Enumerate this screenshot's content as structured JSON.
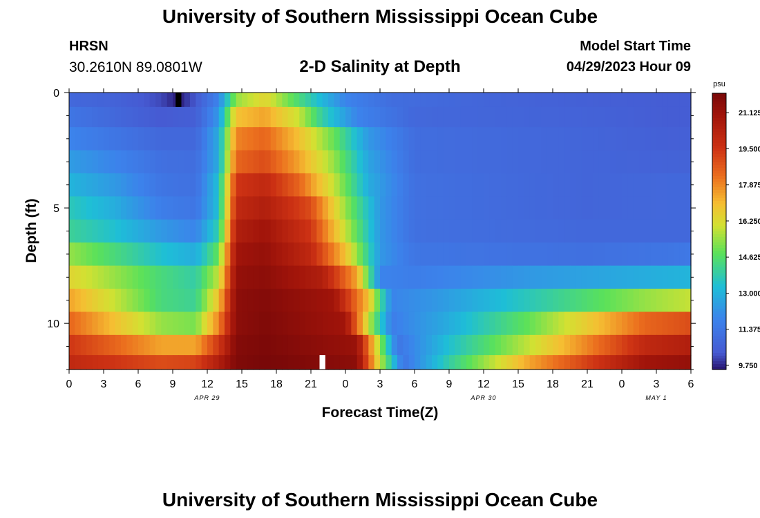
{
  "header": {
    "title": "University of Southern Mississippi Ocean Cube",
    "station": "HRSN",
    "coords": "30.2610N  89.0801W",
    "subtitle": "2-D Salinity at Depth",
    "model_label": "Model Start Time",
    "model_time": "04/29/2023 Hour 09"
  },
  "footer": {
    "title": "University of Southern Mississippi Ocean Cube"
  },
  "chart_data": {
    "type": "heatmap",
    "title": "2-D Salinity at Depth",
    "xlabel": "Forecast Time(Z)",
    "ylabel": "Depth (ft)",
    "x_hours_range": [
      0,
      54
    ],
    "x_tick_labels": [
      "0",
      "3",
      "6",
      "9",
      "12",
      "15",
      "18",
      "21",
      "0",
      "3",
      "6",
      "9",
      "12",
      "15",
      "18",
      "21",
      "0",
      "3",
      "6"
    ],
    "date_labels": [
      {
        "text": "APR 29",
        "hour": 12
      },
      {
        "text": "APR 30",
        "hour": 36
      },
      {
        "text": "MAY 1",
        "hour": 51
      }
    ],
    "y_range_ft": [
      0,
      12
    ],
    "y_ticks": [
      0,
      5,
      10
    ],
    "colorbar": {
      "unit": "psu",
      "min": 9.75,
      "max": 22.0,
      "tick_labels": [
        "21.125",
        "19.500",
        "17.875",
        "16.250",
        "14.625",
        "13.000",
        "11.375",
        "9.750"
      ],
      "tick_values": [
        21.125,
        19.5,
        17.875,
        16.25,
        14.625,
        13.0,
        11.375,
        9.75
      ]
    },
    "depth_layers_ft": [
      0.25,
      1.0,
      2.0,
      3.0,
      4.0,
      5.0,
      6.0,
      7.0,
      8.0,
      9.0,
      10.0,
      11.0,
      11.75
    ],
    "series": [
      {
        "name": "0.25 ft",
        "hours": [
          0,
          4,
          8,
          9.5,
          11,
          13,
          14.5,
          17,
          20,
          24,
          28,
          36,
          45,
          52,
          54
        ],
        "values": [
          11.0,
          10.8,
          10.3,
          9.8,
          10.5,
          12.0,
          15.5,
          16.5,
          14.5,
          12.0,
          11.2,
          10.9,
          10.7,
          10.6,
          10.6
        ]
      },
      {
        "name": "1 ft",
        "hours": [
          0,
          4,
          8,
          11,
          13,
          14.5,
          17,
          20,
          22,
          25,
          30,
          45,
          52,
          54
        ],
        "values": [
          11.5,
          11.0,
          10.5,
          10.7,
          12.5,
          17.0,
          17.5,
          16.0,
          14.0,
          12.0,
          11.0,
          10.8,
          10.6,
          10.6
        ]
      },
      {
        "name": "2 ft",
        "hours": [
          0,
          4,
          8,
          11,
          13,
          14.5,
          17,
          20,
          23,
          26,
          30,
          45,
          52,
          54
        ],
        "values": [
          12.0,
          11.5,
          11.0,
          11.0,
          13.0,
          18.0,
          18.5,
          17.0,
          15.0,
          12.5,
          11.2,
          10.9,
          10.7,
          10.7
        ]
      },
      {
        "name": "3 ft",
        "hours": [
          0,
          4,
          8,
          11,
          13,
          14.5,
          17,
          20,
          23,
          26,
          30,
          45,
          52,
          54
        ],
        "values": [
          12.6,
          12.0,
          11.3,
          11.2,
          13.0,
          18.5,
          19.0,
          17.5,
          15.5,
          12.8,
          11.2,
          10.9,
          10.8,
          10.8
        ]
      },
      {
        "name": "4 ft",
        "hours": [
          0,
          4,
          8,
          11,
          13,
          14.5,
          17,
          20,
          23,
          26,
          30,
          45,
          52,
          54
        ],
        "values": [
          13.2,
          12.5,
          11.5,
          11.3,
          13.5,
          19.5,
          20.0,
          18.5,
          16.0,
          13.0,
          11.3,
          10.9,
          11.0,
          11.0
        ]
      },
      {
        "name": "5 ft",
        "hours": [
          0,
          4,
          8,
          11,
          13,
          14.5,
          17,
          21,
          24,
          27,
          30,
          45,
          52,
          54
        ],
        "values": [
          13.8,
          13.0,
          11.8,
          11.5,
          13.5,
          20.0,
          20.5,
          19.0,
          15.5,
          12.5,
          11.3,
          10.9,
          11.0,
          11.0
        ]
      },
      {
        "name": "6 ft",
        "hours": [
          0,
          4,
          8,
          11,
          13,
          14.5,
          17,
          21,
          24,
          27,
          30,
          45,
          52,
          54
        ],
        "values": [
          14.2,
          13.5,
          12.5,
          12.0,
          14.0,
          20.5,
          21.0,
          19.5,
          16.0,
          12.5,
          11.3,
          11.0,
          11.0,
          11.0
        ]
      },
      {
        "name": "7 ft",
        "hours": [
          0,
          4,
          8,
          11,
          13,
          14.5,
          17,
          21,
          24,
          27,
          30,
          45,
          52,
          54
        ],
        "values": [
          15.5,
          14.5,
          13.5,
          13.0,
          15.0,
          21.0,
          21.3,
          20.0,
          17.0,
          12.5,
          11.5,
          11.3,
          11.5,
          11.6
        ]
      },
      {
        "name": "8 ft",
        "hours": [
          0,
          4,
          8,
          11,
          13,
          14.5,
          17,
          22,
          25,
          27,
          30,
          40,
          50,
          54
        ],
        "values": [
          16.5,
          15.5,
          14.5,
          14.0,
          16.0,
          21.3,
          21.5,
          20.5,
          17.5,
          12.0,
          11.8,
          12.5,
          13.0,
          13.2
        ]
      },
      {
        "name": "9 ft",
        "hours": [
          0,
          4,
          8,
          11,
          13,
          14.5,
          17,
          23,
          26,
          28,
          32,
          40,
          50,
          54
        ],
        "values": [
          17.5,
          16.0,
          14.5,
          14.2,
          17.0,
          21.5,
          21.7,
          21.0,
          17.0,
          12.0,
          12.5,
          13.8,
          15.5,
          16.0
        ]
      },
      {
        "name": "10 ft",
        "hours": [
          0,
          4,
          8,
          11,
          13,
          14.5,
          17,
          24,
          26,
          28,
          33,
          40,
          50,
          54
        ],
        "values": [
          18.5,
          17.0,
          15.5,
          15.2,
          18.0,
          21.5,
          21.8,
          21.0,
          16.0,
          11.8,
          13.0,
          15.0,
          18.5,
          19.0
        ]
      },
      {
        "name": "11 ft",
        "hours": [
          0,
          4,
          8,
          11,
          13,
          14.5,
          17,
          25,
          27,
          28.5,
          33,
          40,
          50,
          54
        ],
        "values": [
          19.5,
          18.5,
          17.5,
          17.5,
          19.5,
          21.7,
          21.9,
          21.2,
          15.5,
          11.5,
          13.5,
          16.0,
          20.0,
          20.5
        ]
      },
      {
        "name": "11.75 ft",
        "hours": [
          0,
          4,
          8,
          11,
          13,
          14.5,
          17,
          25,
          27,
          29,
          33,
          40,
          50,
          54
        ],
        "values": [
          20.0,
          19.5,
          19.0,
          19.2,
          20.5,
          21.8,
          22.0,
          21.5,
          16.0,
          11.5,
          14.0,
          17.5,
          21.0,
          21.3
        ]
      }
    ],
    "missing_cells": [
      {
        "depth_ft": 0.25,
        "hours": [
          9.25,
          9.75
        ],
        "color": "#000000"
      },
      {
        "depth_ft": 11.75,
        "hours": [
          21.75,
          22.25
        ],
        "color": "#ffffff"
      }
    ]
  }
}
